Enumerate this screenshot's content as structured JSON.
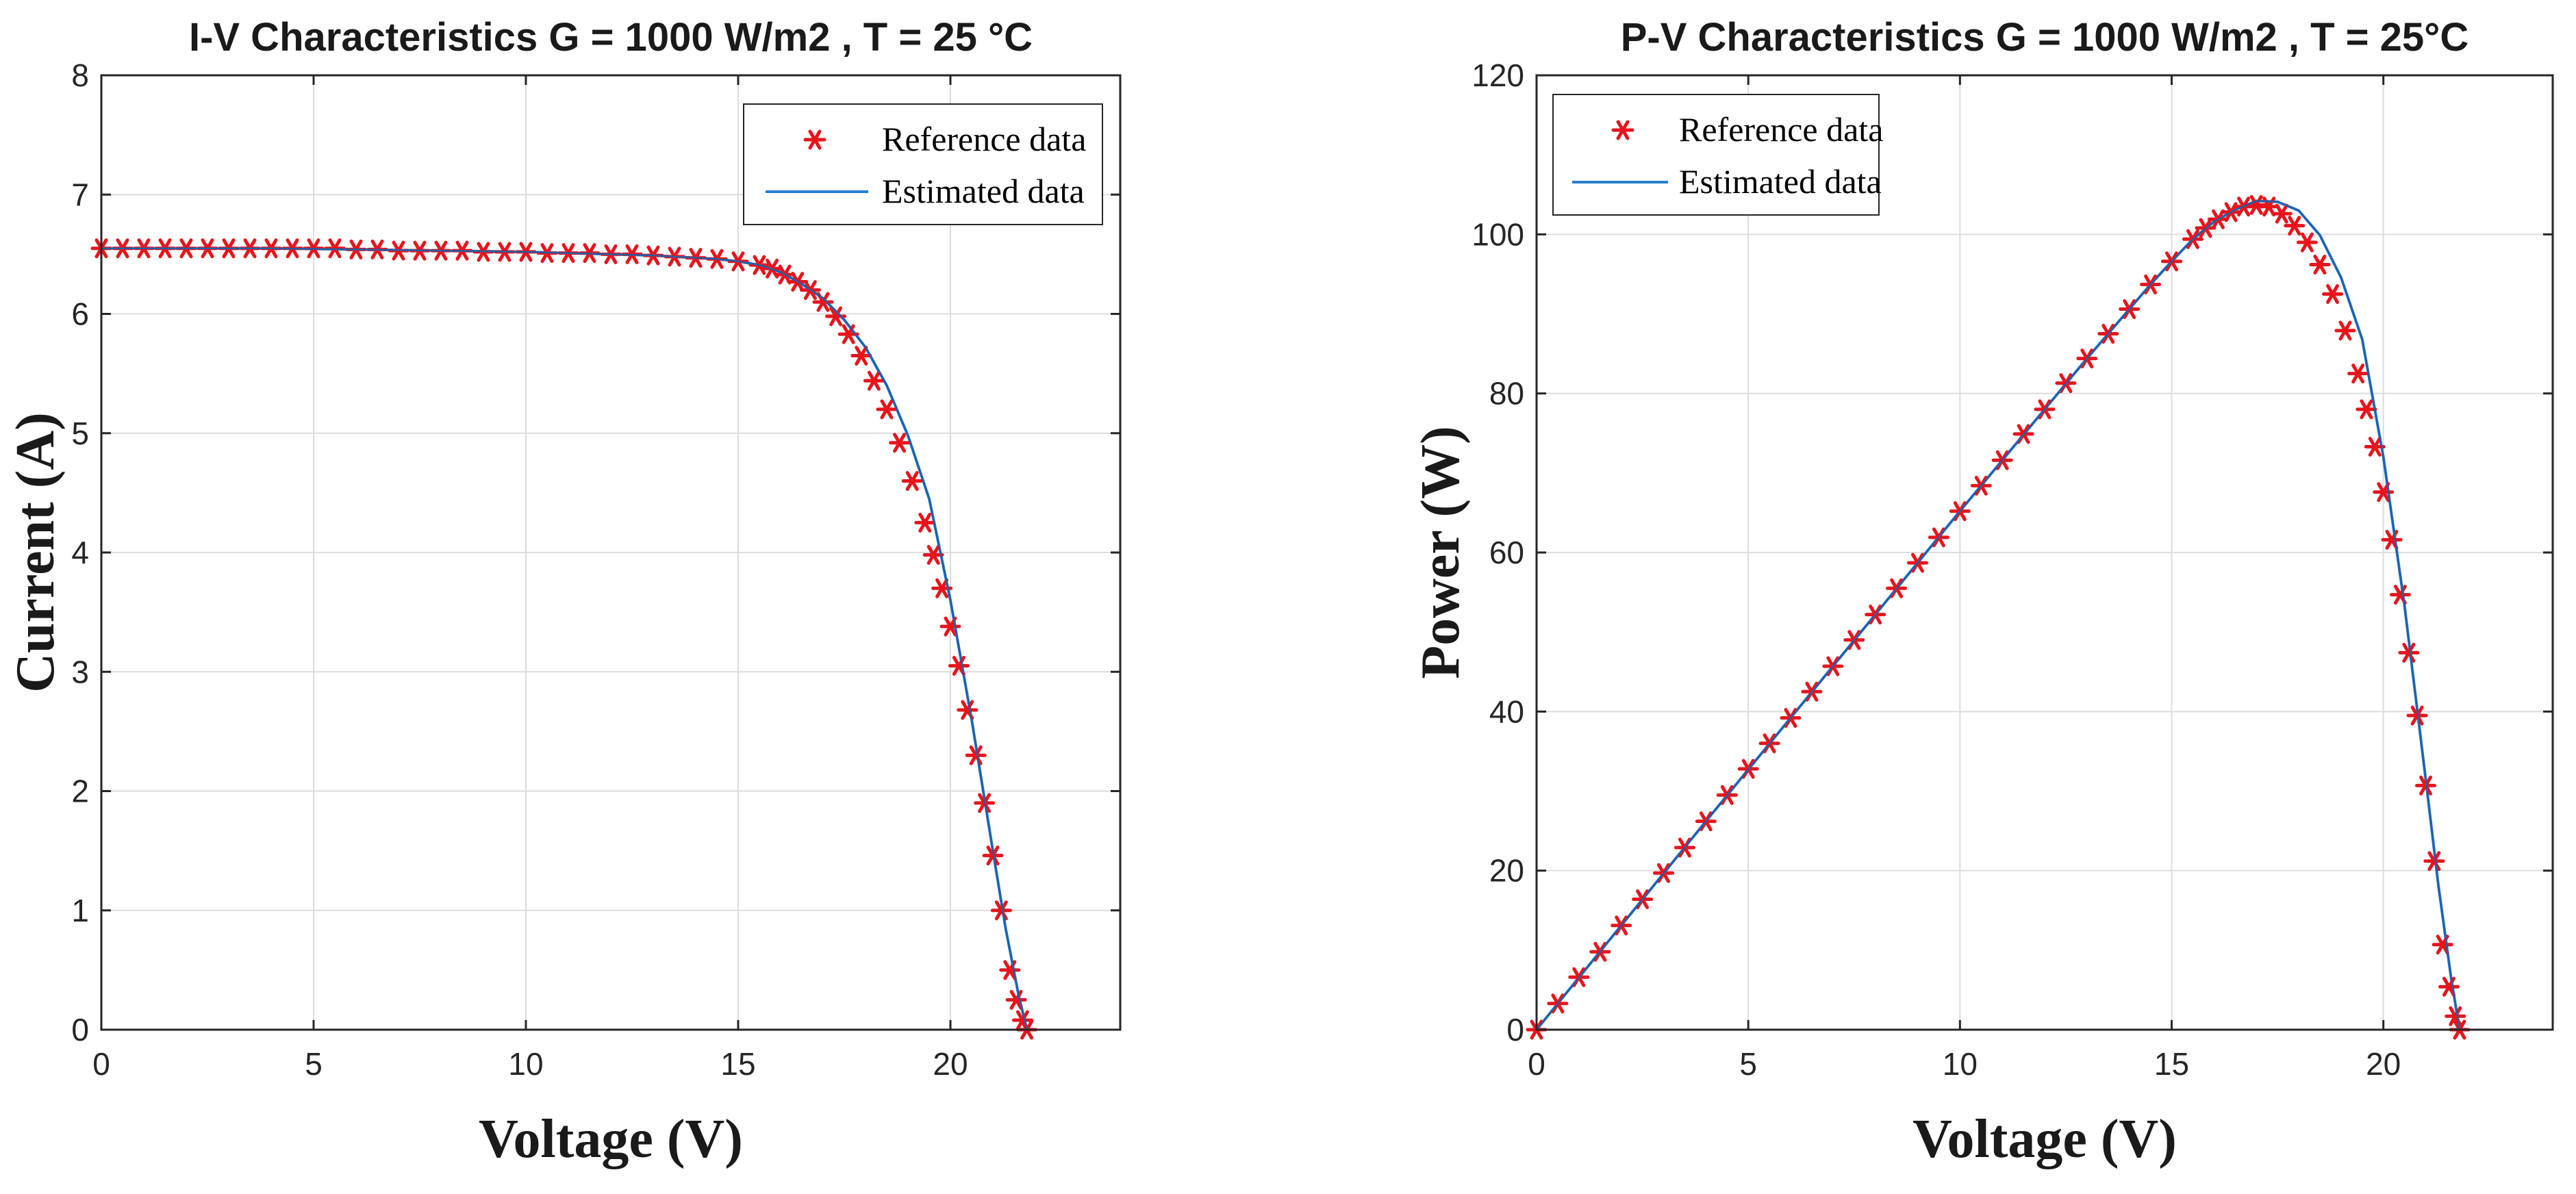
{
  "chart_data": [
    {
      "type": "line",
      "title": "I-V Characteristics G = 1000 W/m2 , T = 25 °C",
      "xlabel": "Voltage (V)",
      "ylabel": "Current (A)",
      "xlim": [
        0,
        24
      ],
      "ylim": [
        0,
        8
      ],
      "xticks": [
        0,
        5,
        10,
        15,
        20
      ],
      "yticks": [
        0,
        1,
        2,
        3,
        4,
        5,
        6,
        7,
        8
      ],
      "grid": true,
      "legend": {
        "placement": "top-right",
        "entries": [
          "Reference data",
          "Estimated data"
        ]
      },
      "series": [
        {
          "name": "Reference data",
          "style": "red asterisk markers",
          "x": [
            0,
            0.5,
            1.0,
            1.5,
            2.0,
            2.5,
            3.0,
            3.5,
            4.0,
            4.5,
            5.0,
            5.5,
            6.0,
            6.5,
            7.0,
            7.5,
            8.0,
            8.5,
            9.0,
            9.5,
            10.0,
            10.5,
            11.0,
            11.5,
            12.0,
            12.5,
            13.0,
            13.5,
            14.0,
            14.5,
            15.0,
            15.5,
            15.8,
            16.1,
            16.4,
            16.7,
            17.0,
            17.3,
            17.6,
            17.9,
            18.2,
            18.5,
            18.8,
            19.1,
            19.4,
            19.6,
            19.8,
            20.0,
            20.2,
            20.4,
            20.6,
            20.8,
            21.0,
            21.2,
            21.4,
            21.55,
            21.7,
            21.8
          ],
          "y": [
            6.55,
            6.55,
            6.55,
            6.55,
            6.55,
            6.55,
            6.55,
            6.55,
            6.55,
            6.55,
            6.55,
            6.55,
            6.54,
            6.54,
            6.53,
            6.53,
            6.53,
            6.53,
            6.52,
            6.52,
            6.52,
            6.51,
            6.51,
            6.51,
            6.5,
            6.5,
            6.49,
            6.48,
            6.47,
            6.46,
            6.44,
            6.41,
            6.38,
            6.33,
            6.27,
            6.2,
            6.1,
            5.98,
            5.83,
            5.65,
            5.44,
            5.2,
            4.92,
            4.6,
            4.25,
            3.98,
            3.7,
            3.38,
            3.05,
            2.68,
            2.3,
            1.9,
            1.46,
            1.0,
            0.5,
            0.25,
            0.08,
            0.0
          ]
        },
        {
          "name": "Estimated data",
          "style": "blue line",
          "x": [
            0,
            2,
            4,
            6,
            8,
            10,
            12,
            13,
            14,
            14.5,
            15,
            15.5,
            16,
            16.5,
            17,
            17.5,
            18,
            18.5,
            19,
            19.5,
            20,
            20.5,
            21,
            21.3,
            21.6,
            21.8
          ],
          "y": [
            6.55,
            6.55,
            6.55,
            6.54,
            6.53,
            6.52,
            6.5,
            6.49,
            6.47,
            6.46,
            6.44,
            6.41,
            6.35,
            6.25,
            6.13,
            5.95,
            5.72,
            5.4,
            4.98,
            4.45,
            3.6,
            2.6,
            1.5,
            0.85,
            0.3,
            0.0
          ]
        }
      ]
    },
    {
      "type": "line",
      "title": "P-V Characteristics G = 1000 W/m2 , T = 25°C",
      "xlabel": "Voltage (V)",
      "ylabel": "Power (W)",
      "xlim": [
        0,
        24
      ],
      "ylim": [
        0,
        120
      ],
      "xticks": [
        0,
        5,
        10,
        15,
        20
      ],
      "yticks": [
        0,
        20,
        40,
        60,
        80,
        100,
        120
      ],
      "grid": true,
      "legend": {
        "placement": "top-left",
        "entries": [
          "Reference data",
          "Estimated data"
        ]
      },
      "series": [
        {
          "name": "Reference data",
          "style": "red asterisk markers",
          "x": [
            0,
            0.5,
            1.0,
            1.5,
            2.0,
            2.5,
            3.0,
            3.5,
            4.0,
            4.5,
            5.0,
            5.5,
            6.0,
            6.5,
            7.0,
            7.5,
            8.0,
            8.5,
            9.0,
            9.5,
            10.0,
            10.5,
            11.0,
            11.5,
            12.0,
            12.5,
            13.0,
            13.5,
            14.0,
            14.5,
            15.0,
            15.5,
            15.8,
            16.1,
            16.4,
            16.7,
            17.0,
            17.3,
            17.6,
            17.9,
            18.2,
            18.5,
            18.8,
            19.1,
            19.4,
            19.6,
            19.8,
            20.0,
            20.2,
            20.4,
            20.6,
            20.8,
            21.0,
            21.2,
            21.4,
            21.55,
            21.7,
            21.8
          ],
          "y": [
            0,
            3.3,
            6.6,
            9.8,
            13.1,
            16.4,
            19.7,
            22.9,
            26.2,
            29.5,
            32.8,
            36.0,
            39.2,
            42.5,
            45.7,
            49.0,
            52.2,
            55.5,
            58.7,
            61.9,
            65.2,
            68.4,
            71.6,
            74.9,
            78.0,
            81.3,
            84.4,
            87.5,
            90.6,
            93.7,
            96.6,
            99.4,
            100.8,
            101.9,
            102.8,
            103.5,
            103.7,
            103.5,
            102.6,
            101.1,
            99.0,
            96.2,
            92.5,
            87.9,
            82.5,
            78.0,
            73.3,
            67.6,
            61.6,
            54.7,
            47.4,
            39.5,
            30.7,
            21.2,
            10.7,
            5.4,
            1.7,
            0.0
          ]
        },
        {
          "name": "Estimated data",
          "style": "blue line",
          "x": [
            0,
            2,
            4,
            6,
            8,
            10,
            12,
            13,
            14,
            14.5,
            15,
            15.5,
            16,
            16.5,
            17,
            17.5,
            18,
            18.5,
            19,
            19.5,
            20,
            20.5,
            21,
            21.3,
            21.6,
            21.8
          ],
          "y": [
            0,
            13.1,
            26.2,
            39.2,
            52.2,
            65.2,
            78.0,
            84.4,
            90.6,
            93.7,
            96.6,
            99.4,
            101.6,
            103.1,
            104.2,
            104.1,
            103.0,
            99.9,
            94.6,
            86.8,
            72.0,
            53.3,
            31.5,
            18.1,
            6.5,
            0.0
          ]
        }
      ]
    }
  ]
}
